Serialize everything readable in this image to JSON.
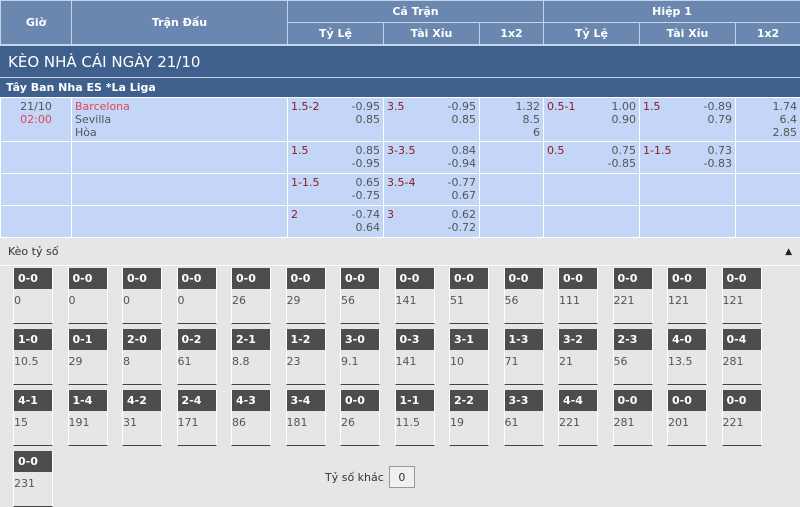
{
  "header": {
    "gio": "Giờ",
    "tran_dau": "Trận Đấu",
    "ca_tran": "Cả Trận",
    "hiep1": "Hiệp 1",
    "ty_le": "Tỷ Lệ",
    "tai_xiu": "Tài Xỉu",
    "x12": "1x2"
  },
  "banner": "KÈO NHÀ CÁI NGÀY 21/10",
  "league": "Tây Ban Nha ES *La Liga",
  "match": {
    "date": "21/10",
    "time": "02:00",
    "home": "Barcelona",
    "away": "Sevilla",
    "draw": "Hòa"
  },
  "rows": [
    {
      "hdp": [
        "1.5-2",
        "-0.95",
        "0.85"
      ],
      "ou": [
        "3.5",
        "-0.95",
        "0.85"
      ],
      "x12": [
        "1.32",
        "8.5",
        "6"
      ],
      "h1hdp": [
        "0.5-1",
        "1.00",
        "0.90"
      ],
      "h1ou": [
        "1.5",
        "-0.89",
        "0.79"
      ],
      "h1x12": [
        "1.74",
        "6.4",
        "2.85"
      ]
    },
    {
      "hdp": [
        "1.5",
        "0.85",
        "-0.95"
      ],
      "ou": [
        "3-3.5",
        "0.84",
        "-0.94"
      ],
      "x12": [],
      "h1hdp": [
        "0.5",
        "0.75",
        "-0.85"
      ],
      "h1ou": [
        "1-1.5",
        "0.73",
        "-0.83"
      ],
      "h1x12": []
    },
    {
      "hdp": [
        "1-1.5",
        "0.65",
        "-0.75"
      ],
      "ou": [
        "3.5-4",
        "-0.77",
        "0.67"
      ],
      "x12": [],
      "h1hdp": [],
      "h1ou": [],
      "h1x12": []
    },
    {
      "hdp": [
        "2",
        "-0.74",
        "0.64"
      ],
      "ou": [
        "3",
        "0.62",
        "-0.72"
      ],
      "x12": [],
      "h1hdp": [],
      "h1ou": [],
      "h1x12": []
    }
  ],
  "correct_score": {
    "title": "Kèo tỷ số",
    "cards": [
      [
        [
          "0-0",
          "0"
        ],
        [
          "0-0",
          "0"
        ],
        [
          "0-0",
          "0"
        ],
        [
          "0-0",
          "0"
        ],
        [
          "0-0",
          "26"
        ],
        [
          "0-0",
          "29"
        ],
        [
          "0-0",
          "56"
        ],
        [
          "0-0",
          "141"
        ],
        [
          "0-0",
          "51"
        ],
        [
          "0-0",
          "56"
        ],
        [
          "0-0",
          "111"
        ],
        [
          "0-0",
          "221"
        ],
        [
          "0-0",
          "121"
        ],
        [
          "0-0",
          "121"
        ]
      ],
      [
        [
          "1-0",
          "10.5"
        ],
        [
          "0-1",
          "29"
        ],
        [
          "2-0",
          "8"
        ],
        [
          "0-2",
          "61"
        ],
        [
          "2-1",
          "8.8"
        ],
        [
          "1-2",
          "23"
        ],
        [
          "3-0",
          "9.1"
        ],
        [
          "0-3",
          "141"
        ],
        [
          "3-1",
          "10"
        ],
        [
          "1-3",
          "71"
        ],
        [
          "3-2",
          "21"
        ],
        [
          "2-3",
          "56"
        ],
        [
          "4-0",
          "13.5"
        ],
        [
          "0-4",
          "281"
        ]
      ],
      [
        [
          "4-1",
          "15"
        ],
        [
          "1-4",
          "191"
        ],
        [
          "4-2",
          "31"
        ],
        [
          "2-4",
          "171"
        ],
        [
          "4-3",
          "86"
        ],
        [
          "3-4",
          "181"
        ],
        [
          "0-0",
          "26"
        ],
        [
          "1-1",
          "11.5"
        ],
        [
          "2-2",
          "19"
        ],
        [
          "3-3",
          "61"
        ],
        [
          "4-4",
          "221"
        ],
        [
          "0-0",
          "281"
        ],
        [
          "0-0",
          "201"
        ],
        [
          "0-0",
          "221"
        ]
      ],
      [
        [
          "0-0",
          "231"
        ]
      ]
    ],
    "other_label": "Tỷ số khác",
    "other_value": "0"
  }
}
